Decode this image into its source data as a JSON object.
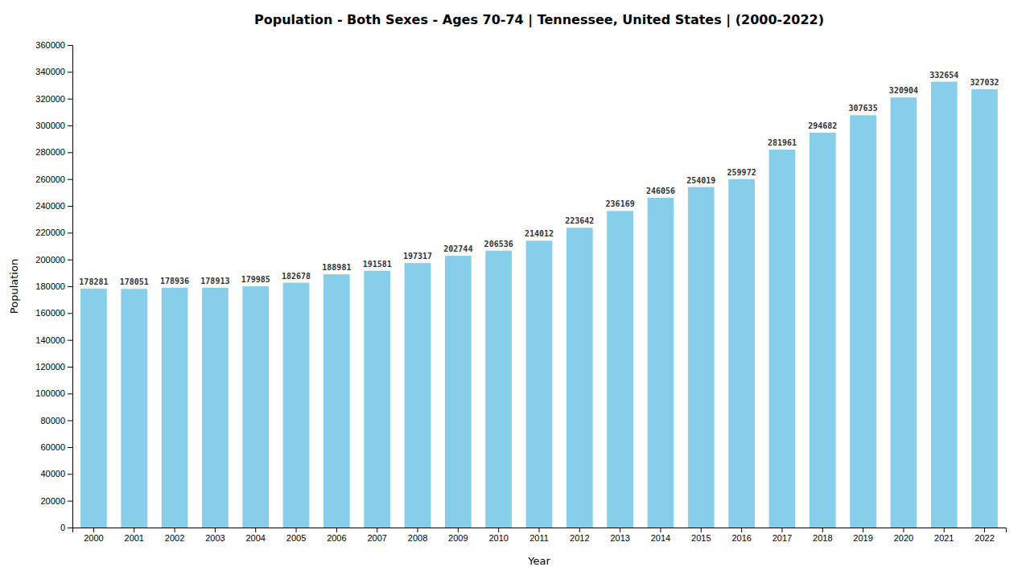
{
  "chart_data": {
    "type": "bar",
    "title": "Population - Both Sexes - Ages 70-74 | Tennessee, United States |  (2000-2022)",
    "x_label": "Year",
    "y_label": "Population",
    "categories": [
      "2000",
      "2001",
      "2002",
      "2003",
      "2004",
      "2005",
      "2006",
      "2007",
      "2008",
      "2009",
      "2010",
      "2011",
      "2012",
      "2013",
      "2014",
      "2015",
      "2016",
      "2017",
      "2018",
      "2019",
      "2020",
      "2021",
      "2022"
    ],
    "values": [
      178281,
      178051,
      178936,
      178913,
      179985,
      182678,
      188981,
      191581,
      197317,
      202744,
      206536,
      214012,
      223642,
      236169,
      246056,
      254019,
      259972,
      281961,
      294682,
      307635,
      320904,
      332654,
      327032
    ],
    "color": "#87CEEB",
    "ylim": [
      0,
      360000
    ],
    "yticks": [
      0,
      20000,
      40000,
      60000,
      80000,
      100000,
      120000,
      140000,
      160000,
      180000,
      200000,
      220000,
      240000,
      260000,
      280000,
      300000,
      320000,
      340000,
      360000
    ],
    "grid": false,
    "data_labels": true
  }
}
